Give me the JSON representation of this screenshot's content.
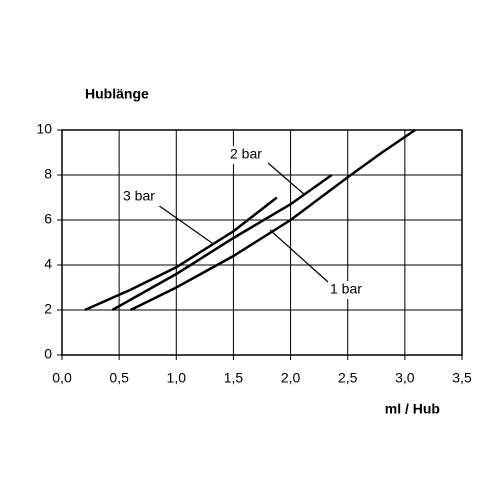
{
  "chart_data": {
    "type": "line",
    "y_label": "Hublänge",
    "x_label": "ml / Hub",
    "series": [
      {
        "name": "3 bar",
        "color": "#000000",
        "x": [
          0.2,
          0.6,
          1.0,
          1.5,
          1.88
        ],
        "values": [
          2,
          2.9,
          3.9,
          5.5,
          7
        ]
      },
      {
        "name": "2 bar",
        "color": "#000000",
        "x": [
          0.44,
          1.0,
          1.5,
          2.0,
          2.36
        ],
        "values": [
          2,
          3.6,
          5.2,
          6.7,
          8
        ]
      },
      {
        "name": "1 bar",
        "color": "#000000",
        "x": [
          0.6,
          1.0,
          1.5,
          2.0,
          2.5,
          2.8,
          3.09
        ],
        "values": [
          2,
          3,
          4.4,
          6,
          7.9,
          9,
          10
        ]
      }
    ],
    "xlim": [
      0,
      3.5
    ],
    "ylim": [
      0,
      10
    ],
    "xticks": [
      {
        "value": 0,
        "label": "0,0"
      },
      {
        "value": 0.5,
        "label": "0,5"
      },
      {
        "value": 1,
        "label": "1,0"
      },
      {
        "value": 1.5,
        "label": "1,5"
      },
      {
        "value": 2,
        "label": "2,0"
      },
      {
        "value": 2.5,
        "label": "2,5"
      },
      {
        "value": 3,
        "label": "3,0"
      },
      {
        "value": 3.5,
        "label": "3,5"
      }
    ],
    "yticks": [
      0,
      2,
      4,
      6,
      8,
      10
    ],
    "grid": true
  }
}
